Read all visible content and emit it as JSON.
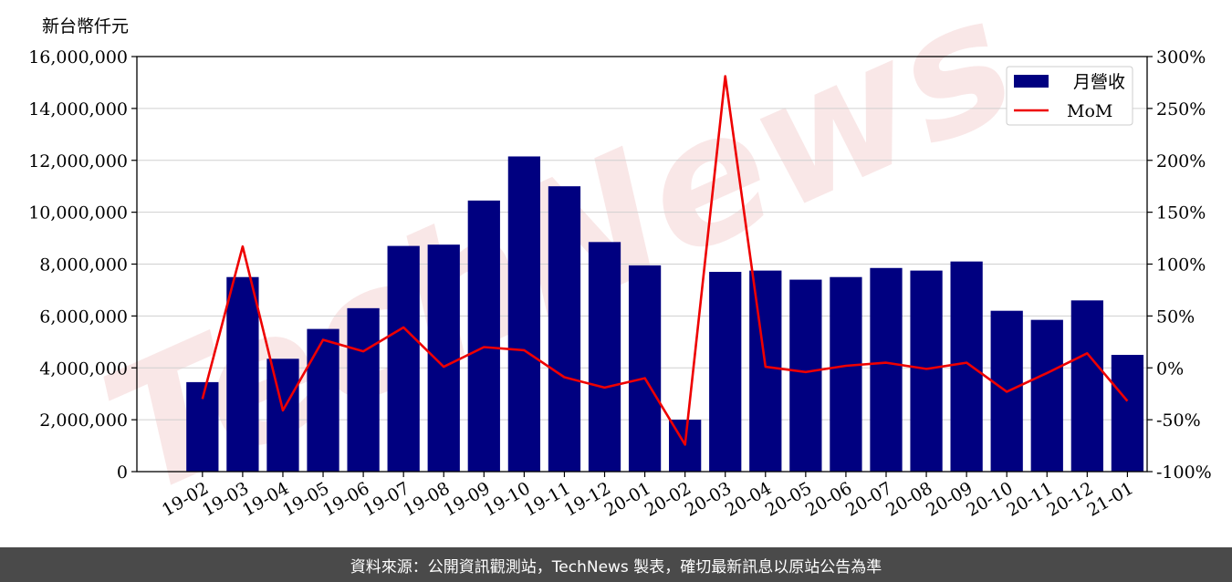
{
  "colors": {
    "bar": "#000080",
    "line": "#ee0000",
    "grid": "#d0d0d0",
    "watermark": "#f5d5d5",
    "footer_bg": "#4a4a4a"
  },
  "watermark_text": "TechNews",
  "footer": {
    "text": "資料來源：公開資訊觀測站，TechNews 製表，確切最新訊息以原站公告為準"
  },
  "chart_data": {
    "type": "bar",
    "title": "",
    "unit_label": "新台幣仟元",
    "categories": [
      "19-02",
      "19-03",
      "19-04",
      "19-05",
      "19-06",
      "19-07",
      "19-08",
      "19-09",
      "19-10",
      "19-11",
      "19-12",
      "20-01",
      "20-02",
      "20-03",
      "20-04",
      "20-05",
      "20-06",
      "20-07",
      "20-08",
      "20-09",
      "20-10",
      "20-11",
      "20-12",
      "21-01"
    ],
    "series": [
      {
        "name": "月營收",
        "type": "bar",
        "axis": "left",
        "values": [
          3450000,
          7500000,
          4350000,
          5500000,
          6300000,
          8700000,
          8750000,
          10450000,
          12150000,
          11000000,
          8850000,
          7950000,
          2000000,
          7700000,
          7750000,
          7400000,
          7500000,
          7850000,
          7750000,
          8100000,
          6200000,
          5850000,
          6600000,
          4500000
        ]
      },
      {
        "name": "MoM",
        "type": "line",
        "axis": "right",
        "values": [
          -30,
          117,
          -41,
          27,
          16,
          39,
          1,
          20,
          17,
          -9,
          -19,
          -10,
          -74,
          281,
          1,
          -4,
          2,
          5,
          -1,
          5,
          -23,
          -5,
          14,
          -32
        ]
      }
    ],
    "y_left": {
      "lim": [
        0,
        16000000
      ],
      "ticks": [
        0,
        2000000,
        4000000,
        6000000,
        8000000,
        10000000,
        12000000,
        14000000,
        16000000
      ],
      "tick_labels": [
        "0",
        "2,000,000",
        "4,000,000",
        "6,000,000",
        "8,000,000",
        "10,000,000",
        "12,000,000",
        "14,000,000",
        "16,000,000"
      ]
    },
    "y_right": {
      "lim": [
        -100,
        300
      ],
      "ticks": [
        -100,
        -50,
        0,
        50,
        100,
        150,
        200,
        250,
        300
      ],
      "tick_labels": [
        "-100%",
        "-50%",
        "0%",
        "50%",
        "100%",
        "150%",
        "200%",
        "250%",
        "300%"
      ]
    },
    "grid": true,
    "legend": "top-right"
  }
}
